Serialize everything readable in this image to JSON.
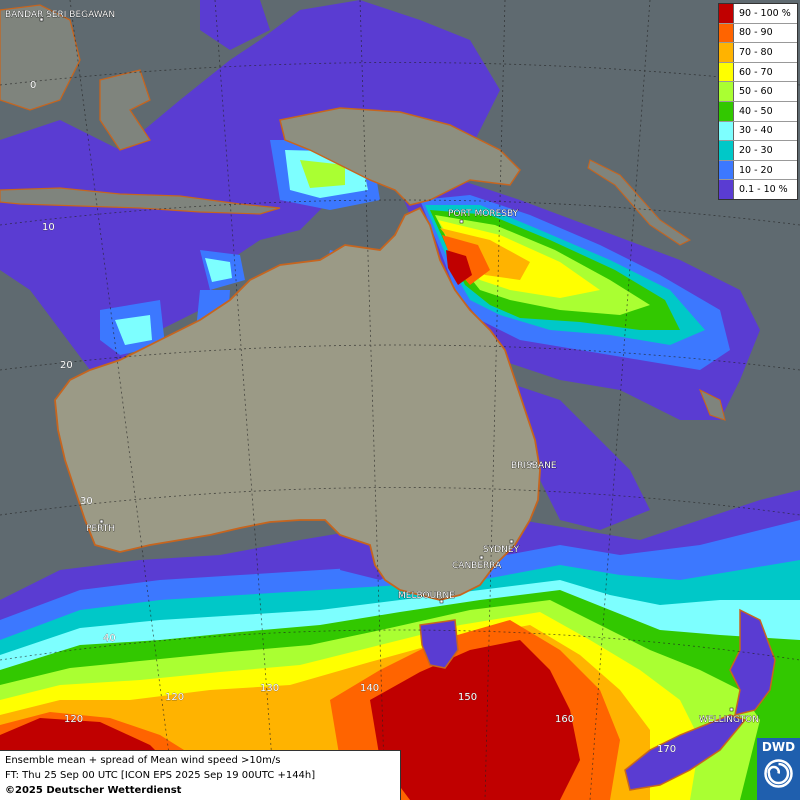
{
  "map": {
    "cities": [
      {
        "name": "BANDAR SERI BEGAWAN"
      },
      {
        "name": "PORT MORESBY"
      },
      {
        "name": "BRISBANE"
      },
      {
        "name": "PERTH"
      },
      {
        "name": "SYDNEY"
      },
      {
        "name": "CANBERRA"
      },
      {
        "name": "MELBOURNE"
      },
      {
        "name": "WELLINGTON"
      }
    ],
    "lat_labels": [
      "0",
      "10",
      "20",
      "30",
      "40",
      "120"
    ],
    "lon_labels": [
      "120",
      "130",
      "140",
      "150",
      "160",
      "170"
    ]
  },
  "legend": {
    "items": [
      {
        "label": "90 - 100 %",
        "color": "#c00000"
      },
      {
        "label": "80 - 90",
        "color": "#ff6400"
      },
      {
        "label": "70 - 80",
        "color": "#ffb300"
      },
      {
        "label": "60 - 70",
        "color": "#ffff00"
      },
      {
        "label": "50 - 60",
        "color": "#aaff32"
      },
      {
        "label": "40 - 50",
        "color": "#32c800"
      },
      {
        "label": "30 - 40",
        "color": "#7dffff"
      },
      {
        "label": "20 - 30",
        "color": "#00c8c8"
      },
      {
        "label": "10 - 20",
        "color": "#3c78ff"
      },
      {
        "label": "0.1 - 10 %",
        "color": "#5a3cd2"
      }
    ]
  },
  "info": {
    "line1": "Ensemble mean + spread of Mean wind speed >10m/s",
    "line2": "FT: Thu 25 Sep 00 UTC [ICON EPS 2025 Sep 19 00UTC +144h]",
    "copyright": "©2025 Deutscher Wetterdienst"
  },
  "logo": {
    "text": "DWD"
  }
}
